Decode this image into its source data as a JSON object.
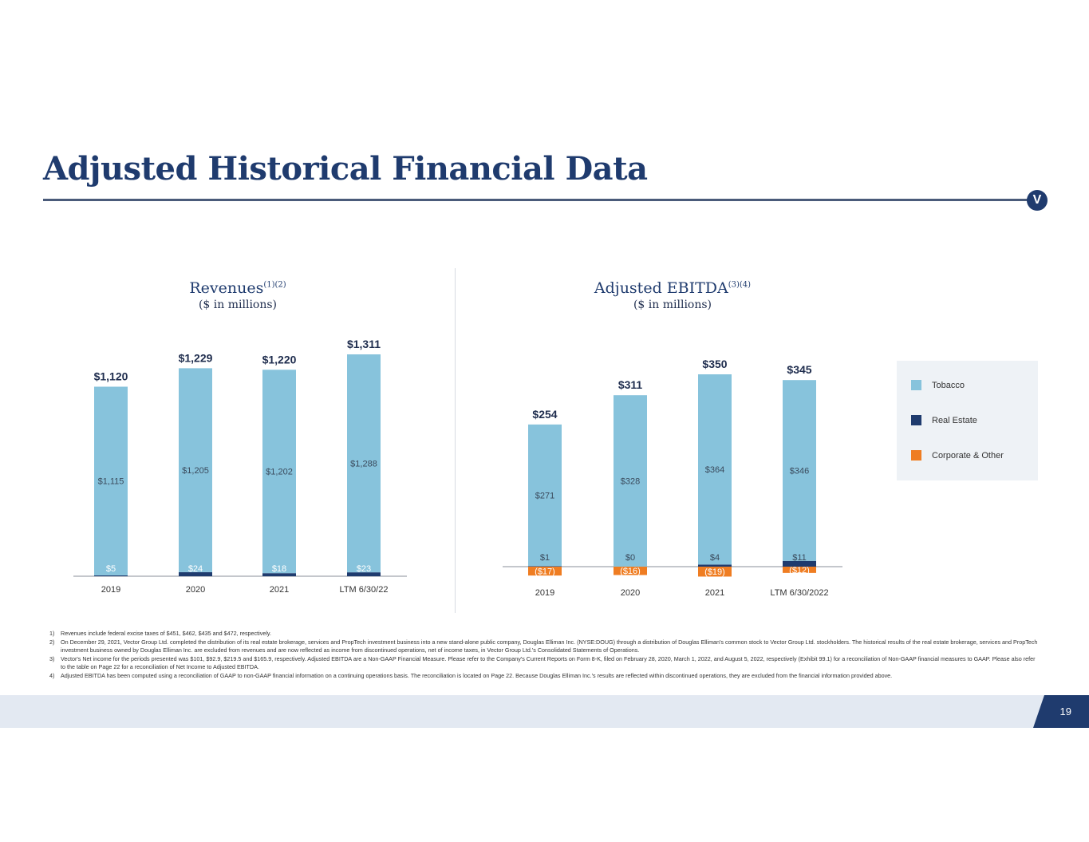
{
  "header": {
    "title": "Adjusted Historical Financial Data",
    "logo": "V"
  },
  "colors": {
    "tobacco": "#87c3dc",
    "real_estate": "#1f3b6e",
    "corporate": "#ef7d22",
    "title": "#1f3b6e"
  },
  "revenues": {
    "title": "Revenues",
    "superscript": "(1)(2)",
    "subtitle": "($ in millions)"
  },
  "ebitda": {
    "title": "Adjusted EBITDA",
    "superscript": "(3)(4)",
    "subtitle": "($ in millions)"
  },
  "legend": {
    "items": [
      "Tobacco",
      "Real Estate",
      "Corporate & Other"
    ]
  },
  "chart_data": [
    {
      "type": "bar",
      "stacked": true,
      "title": "Revenues (1)(2)",
      "subtitle": "($ in millions)",
      "categories": [
        "2019",
        "2020",
        "2021",
        "LTM 6/30/22"
      ],
      "series": [
        {
          "name": "Tobacco",
          "values": [
            1115,
            1205,
            1202,
            1288
          ],
          "labels": [
            "$1,115",
            "$1,205",
            "$1,202",
            "$1,288"
          ]
        },
        {
          "name": "Real Estate",
          "values": [
            5,
            24,
            18,
            23
          ],
          "labels": [
            "$5",
            "$24",
            "$18",
            "$23"
          ]
        }
      ],
      "totals": [
        1120,
        1229,
        1220,
        1311
      ],
      "total_labels": [
        "$1,120",
        "$1,229",
        "$1,220",
        "$1,311"
      ],
      "ylim": [
        0,
        1311
      ]
    },
    {
      "type": "bar",
      "stacked": true,
      "title": "Adjusted EBITDA (3)(4)",
      "subtitle": "($ in millions)",
      "categories": [
        "2019",
        "2020",
        "2021",
        "LTM 6/30/2022"
      ],
      "series": [
        {
          "name": "Tobacco",
          "values": [
            271,
            328,
            364,
            346
          ],
          "labels": [
            "$271",
            "$328",
            "$364",
            "$346"
          ]
        },
        {
          "name": "Real Estate",
          "values": [
            1,
            0,
            4,
            11
          ],
          "labels": [
            "$1",
            "$0",
            "$4",
            "$11"
          ]
        },
        {
          "name": "Corporate & Other",
          "values": [
            -17,
            -16,
            -19,
            -12
          ],
          "labels": [
            "($17)",
            "($16)",
            "($19)",
            "($12)"
          ]
        }
      ],
      "totals": [
        254,
        311,
        350,
        345
      ],
      "total_labels": [
        "$254",
        "$311",
        "$350",
        "$345"
      ],
      "legend": "right"
    }
  ],
  "footnotes": [
    {
      "num": "1)",
      "text": "Revenues include federal excise taxes of $451, $462, $435 and $472, respectively."
    },
    {
      "num": "2)",
      "text": "On December 29, 2021, Vector Group Ltd. completed the distribution of its real estate brokerage, services and PropTech investment business into a new stand-alone public company, Douglas Elliman Inc. (NYSE:DOUG) through a distribution of Douglas Elliman's common stock to Vector Group Ltd. stockholders. The historical results of the real estate brokerage, services and PropTech investment business owned by Douglas Elliman Inc. are excluded from revenues and are now reflected as income from discontinued operations, net of income taxes, in Vector Group Ltd.'s Consolidated Statements of Operations."
    },
    {
      "num": "3)",
      "text": "Vector's Net income for the periods presented was $101, $92.9, $219.5 and $165.9, respectively. Adjusted EBITDA are a Non-GAAP Financial Measure. Please refer to the Company's Current Reports on Form 8-K, filed on February 28, 2020, March 1, 2022, and August 5, 2022, respectively (Exhibit 99.1) for a reconciliation of Non-GAAP financial measures to GAAP. Please also refer to the table on Page 22 for a reconciliation of Net Income to Adjusted EBITDA."
    },
    {
      "num": "4)",
      "text": "Adjusted EBITDA has been computed using a reconciliation of GAAP to non-GAAP financial information on a continuing operations basis. The reconciliation is located on Page 22. Because Douglas Elliman Inc.'s results are reflected within discontinued operations, they are excluded from the financial information provided above."
    }
  ],
  "footer": {
    "page_number": "19"
  }
}
